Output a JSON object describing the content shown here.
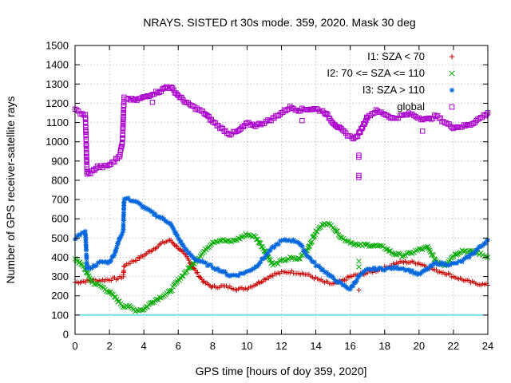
{
  "chart_data": {
    "type": "scatter",
    "title": "NRAYS. SISTED rt 30s mode. 359, 2020. Mask 30 deg",
    "xlabel": "GPS time [hours of doy 359, 2020]",
    "ylabel": "Number of GPS receiver-satellite rays",
    "xlim": [
      0,
      24
    ],
    "ylim": [
      0,
      1500
    ],
    "xticks": [
      0,
      2,
      4,
      6,
      8,
      10,
      12,
      14,
      16,
      18,
      20,
      22,
      24
    ],
    "yticks": [
      0,
      100,
      200,
      300,
      400,
      500,
      600,
      700,
      800,
      900,
      1000,
      1100,
      1200,
      1300,
      1400,
      1500
    ],
    "grid": true,
    "legend_position": "top-right",
    "reference_line": {
      "y": 100,
      "color": "#00cccc"
    },
    "series": [
      {
        "name": "I1: SZA < 70",
        "marker": "+",
        "color": "#cc0000",
        "points": [
          [
            0,
            270
          ],
          [
            0.5,
            275
          ],
          [
            1,
            280
          ],
          [
            1.5,
            280
          ],
          [
            2,
            285
          ],
          [
            2.5,
            290
          ],
          [
            2.8,
            300
          ],
          [
            2.85,
            355
          ],
          [
            3,
            365
          ],
          [
            3.5,
            385
          ],
          [
            4,
            410
          ],
          [
            4.5,
            440
          ],
          [
            5,
            470
          ],
          [
            5.5,
            490
          ],
          [
            6,
            450
          ],
          [
            6.5,
            400
          ],
          [
            7,
            330
          ],
          [
            7.5,
            270
          ],
          [
            8,
            245
          ],
          [
            8.5,
            250
          ],
          [
            9,
            245
          ],
          [
            9.5,
            235
          ],
          [
            10,
            240
          ],
          [
            10.5,
            260
          ],
          [
            11,
            285
          ],
          [
            11.5,
            310
          ],
          [
            12,
            320
          ],
          [
            12.5,
            325
          ],
          [
            13,
            320
          ],
          [
            13.5,
            310
          ],
          [
            14,
            290
          ],
          [
            14.5,
            270
          ],
          [
            15,
            260
          ],
          [
            15.5,
            275
          ],
          [
            16,
            300
          ],
          [
            16.5,
            310
          ],
          [
            17,
            320
          ],
          [
            17.5,
            330
          ],
          [
            18,
            345
          ],
          [
            18.5,
            365
          ],
          [
            19,
            375
          ],
          [
            19.5,
            375
          ],
          [
            20,
            370
          ],
          [
            20.5,
            350
          ],
          [
            21,
            330
          ],
          [
            21.5,
            320
          ],
          [
            22,
            300
          ],
          [
            22.5,
            285
          ],
          [
            23,
            270
          ],
          [
            23.5,
            262
          ],
          [
            24,
            255
          ]
        ]
      },
      {
        "name": "I2: 70 <= SZA <= 110",
        "marker": "x",
        "color": "#00aa00",
        "points": [
          [
            0,
            395
          ],
          [
            0.5,
            350
          ],
          [
            1,
            270
          ],
          [
            1.5,
            250
          ],
          [
            2,
            220
          ],
          [
            2.5,
            175
          ],
          [
            2.8,
            145
          ],
          [
            3,
            150
          ],
          [
            3.5,
            125
          ],
          [
            4,
            130
          ],
          [
            4.5,
            170
          ],
          [
            5,
            195
          ],
          [
            5.5,
            220
          ],
          [
            6,
            280
          ],
          [
            6.5,
            330
          ],
          [
            7,
            380
          ],
          [
            7.5,
            430
          ],
          [
            8,
            480
          ],
          [
            8.5,
            490
          ],
          [
            9,
            480
          ],
          [
            9.5,
            495
          ],
          [
            10,
            520
          ],
          [
            10.5,
            505
          ],
          [
            11,
            440
          ],
          [
            11.5,
            360
          ],
          [
            12,
            380
          ],
          [
            12.5,
            395
          ],
          [
            13,
            390
          ],
          [
            13.5,
            440
          ],
          [
            14,
            530
          ],
          [
            14.5,
            580
          ],
          [
            15,
            560
          ],
          [
            15.5,
            500
          ],
          [
            16,
            480
          ],
          [
            16.5,
            460
          ],
          [
            17,
            465
          ],
          [
            17.5,
            460
          ],
          [
            18,
            450
          ],
          [
            18.5,
            420
          ],
          [
            19,
            410
          ],
          [
            19.5,
            420
          ],
          [
            20,
            440
          ],
          [
            20.5,
            450
          ],
          [
            21,
            380
          ],
          [
            21.5,
            360
          ],
          [
            22,
            410
          ],
          [
            22.5,
            435
          ],
          [
            23,
            430
          ],
          [
            23.5,
            420
          ],
          [
            24,
            400
          ]
        ]
      },
      {
        "name": "I3: SZA > 110",
        "marker": "*",
        "color": "#0066dd",
        "points": [
          [
            0,
            500
          ],
          [
            0.3,
            520
          ],
          [
            0.6,
            530
          ],
          [
            0.7,
            340
          ],
          [
            1,
            350
          ],
          [
            1.5,
            375
          ],
          [
            2,
            375
          ],
          [
            2.3,
            420
          ],
          [
            2.6,
            500
          ],
          [
            2.8,
            540
          ],
          [
            2.85,
            700
          ],
          [
            3,
            705
          ],
          [
            3.5,
            690
          ],
          [
            4,
            660
          ],
          [
            4.5,
            630
          ],
          [
            5,
            605
          ],
          [
            5.5,
            580
          ],
          [
            6,
            500
          ],
          [
            6.5,
            430
          ],
          [
            7,
            390
          ],
          [
            7.5,
            370
          ],
          [
            8,
            350
          ],
          [
            8.5,
            330
          ],
          [
            9,
            305
          ],
          [
            9.5,
            310
          ],
          [
            10,
            325
          ],
          [
            10.5,
            350
          ],
          [
            11,
            400
          ],
          [
            11.5,
            450
          ],
          [
            12,
            485
          ],
          [
            12.5,
            490
          ],
          [
            13,
            480
          ],
          [
            13.5,
            410
          ],
          [
            14,
            360
          ],
          [
            14.5,
            330
          ],
          [
            15,
            290
          ],
          [
            15.5,
            260
          ],
          [
            16,
            235
          ],
          [
            16.5,
            300
          ],
          [
            17,
            335
          ],
          [
            17.5,
            340
          ],
          [
            18,
            340
          ],
          [
            18.5,
            345
          ],
          [
            19,
            345
          ],
          [
            19.5,
            330
          ],
          [
            20,
            310
          ],
          [
            20.5,
            340
          ],
          [
            21,
            370
          ],
          [
            21.5,
            365
          ],
          [
            22,
            365
          ],
          [
            22.5,
            380
          ],
          [
            23,
            410
          ],
          [
            23.5,
            450
          ],
          [
            24,
            490
          ]
        ]
      },
      {
        "name": "global",
        "marker": "square",
        "color": "#aa00cc",
        "points": [
          [
            0,
            1165
          ],
          [
            0.3,
            1150
          ],
          [
            0.6,
            1140
          ],
          [
            0.7,
            830
          ],
          [
            1,
            845
          ],
          [
            1.3,
            870
          ],
          [
            1.7,
            870
          ],
          [
            2,
            880
          ],
          [
            2.3,
            900
          ],
          [
            2.6,
            930
          ],
          [
            2.75,
            1000
          ],
          [
            2.85,
            1225
          ],
          [
            3,
            1225
          ],
          [
            3.5,
            1215
          ],
          [
            4,
            1230
          ],
          [
            4.5,
            1250
          ],
          [
            5,
            1265
          ],
          [
            5.3,
            1285
          ],
          [
            5.6,
            1280
          ],
          [
            6,
            1240
          ],
          [
            6.5,
            1200
          ],
          [
            7,
            1175
          ],
          [
            7.5,
            1150
          ],
          [
            8,
            1105
          ],
          [
            8.5,
            1070
          ],
          [
            9,
            1040
          ],
          [
            9.5,
            1055
          ],
          [
            10,
            1095
          ],
          [
            10.5,
            1085
          ],
          [
            11,
            1100
          ],
          [
            11.5,
            1120
          ],
          [
            12,
            1150
          ],
          [
            12.5,
            1180
          ],
          [
            13,
            1165
          ],
          [
            13.5,
            1170
          ],
          [
            14,
            1170
          ],
          [
            14.5,
            1155
          ],
          [
            15,
            1100
          ],
          [
            15.5,
            1060
          ],
          [
            16,
            1025
          ],
          [
            16.3,
            1020
          ],
          [
            16.5,
            1040
          ],
          [
            17,
            1130
          ],
          [
            17.5,
            1160
          ],
          [
            18,
            1145
          ],
          [
            18.5,
            1120
          ],
          [
            19,
            1135
          ],
          [
            19.5,
            1145
          ],
          [
            20,
            1125
          ],
          [
            20.5,
            1115
          ],
          [
            21,
            1135
          ],
          [
            21.5,
            1100
          ],
          [
            22,
            1075
          ],
          [
            22.5,
            1080
          ],
          [
            23,
            1090
          ],
          [
            23.5,
            1120
          ],
          [
            24,
            1150
          ]
        ]
      }
    ],
    "outlier_points": [
      {
        "series": "global",
        "x": 16.5,
        "y": 930
      },
      {
        "series": "global",
        "x": 16.5,
        "y": 920
      },
      {
        "series": "global",
        "x": 16.5,
        "y": 825
      },
      {
        "series": "global",
        "x": 16.5,
        "y": 815
      },
      {
        "series": "global",
        "x": 20.2,
        "y": 1055
      },
      {
        "series": "global",
        "x": 13.2,
        "y": 1110
      },
      {
        "series": "global",
        "x": 4.5,
        "y": 1205
      },
      {
        "series": "I2: 70 <= SZA <= 110",
        "x": 16.5,
        "y": 380
      },
      {
        "series": "I2: 70 <= SZA <= 110",
        "x": 16.5,
        "y": 350
      },
      {
        "series": "I1: SZA < 70",
        "x": 16.5,
        "y": 230
      }
    ]
  }
}
